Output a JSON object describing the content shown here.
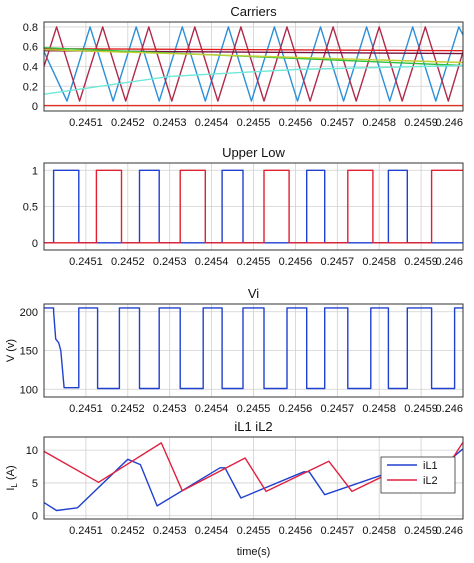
{
  "chart_data": [
    {
      "id": "carriers",
      "type": "line",
      "title": "Carriers",
      "ylabel": "",
      "xlim": [
        0.245,
        0.246
      ],
      "ylim": [
        -0.05,
        0.85
      ],
      "xticks": [
        "0.2451",
        "0.2452",
        "0.2453",
        "0.2454",
        "0.2455",
        "0.2456",
        "0.2457",
        "0.2458",
        "0.2459",
        "0.246"
      ],
      "yticks": [
        "0",
        "0.2",
        "0.4",
        "0.6",
        "0.8"
      ],
      "yticks_values": [
        0,
        0.2,
        0.4,
        0.6,
        0.8
      ],
      "grid": true,
      "series": [
        {
          "color": "#2a8fd8",
          "x": [
            0.245,
            0.245055,
            0.24511,
            0.245165,
            0.24522,
            0.245275,
            0.24533,
            0.245385,
            0.24544,
            0.245495,
            0.24555,
            0.245605,
            0.24566,
            0.245715,
            0.24577,
            0.245825,
            0.24588,
            0.245935,
            0.24599,
            0.246
          ],
          "y": [
            0.55,
            0.05,
            0.8,
            0.05,
            0.8,
            0.05,
            0.8,
            0.05,
            0.8,
            0.05,
            0.8,
            0.05,
            0.8,
            0.05,
            0.8,
            0.05,
            0.8,
            0.05,
            0.8,
            0.72
          ]
        },
        {
          "color": "#b0284a",
          "x": [
            0.245,
            0.24503,
            0.245085,
            0.24514,
            0.245195,
            0.24525,
            0.245305,
            0.24536,
            0.245415,
            0.24547,
            0.245525,
            0.24558,
            0.245635,
            0.24569,
            0.245745,
            0.2458,
            0.245855,
            0.24591,
            0.245965,
            0.246
          ],
          "y": [
            0.4,
            0.8,
            0.05,
            0.8,
            0.05,
            0.8,
            0.05,
            0.8,
            0.05,
            0.8,
            0.05,
            0.8,
            0.05,
            0.8,
            0.05,
            0.8,
            0.05,
            0.8,
            0.05,
            0.55
          ]
        },
        {
          "color": "#7a1040",
          "x": [
            0.245,
            0.246
          ],
          "y": [
            0.56,
            0.53
          ]
        },
        {
          "color": "#e02020",
          "x": [
            0.245,
            0.246
          ],
          "y": [
            0.58,
            0.56
          ]
        },
        {
          "color": "#30c040",
          "x": [
            0.245,
            0.246
          ],
          "y": [
            0.59,
            0.41
          ]
        },
        {
          "color": "#c0d030",
          "x": [
            0.245,
            0.246
          ],
          "y": [
            0.57,
            0.44
          ]
        },
        {
          "color": "#70e8d8",
          "x": [
            0.245,
            0.2451,
            0.2453,
            0.2456,
            0.246
          ],
          "y": [
            0.12,
            0.18,
            0.3,
            0.37,
            0.41
          ]
        },
        {
          "color": "#e03020",
          "x": [
            0.245,
            0.246
          ],
          "y": [
            0.005,
            0.005
          ]
        }
      ]
    },
    {
      "id": "upper-low",
      "type": "line",
      "title": "Upper Low",
      "ylabel": "",
      "xlim": [
        0.245,
        0.246
      ],
      "ylim": [
        -0.1,
        1.1
      ],
      "xticks": [
        "0.2451",
        "0.2452",
        "0.2453",
        "0.2454",
        "0.2455",
        "0.2456",
        "0.2457",
        "0.2458",
        "0.2459",
        "0.246"
      ],
      "yticks": [
        "0",
        "0.5",
        "1"
      ],
      "yticks_values": [
        0,
        0.5,
        1
      ],
      "grid": true,
      "series": [
        {
          "color": "#2040d0",
          "x": [
            0.245,
            0.245023,
            0.245023,
            0.245083,
            0.245083,
            0.245228,
            0.245228,
            0.245275,
            0.245275,
            0.245425,
            0.245425,
            0.245475,
            0.245475,
            0.245627,
            0.245627,
            0.24567,
            0.24567,
            0.245822,
            0.245822,
            0.245867,
            0.245867,
            0.246
          ],
          "y": [
            0,
            0,
            1,
            1,
            0,
            0,
            1,
            1,
            0,
            0,
            1,
            1,
            0,
            0,
            1,
            1,
            0,
            0,
            1,
            1,
            0,
            0
          ]
        },
        {
          "color": "#e02030",
          "x": [
            0.245,
            0.245125,
            0.245125,
            0.245185,
            0.245185,
            0.245325,
            0.245325,
            0.245385,
            0.245385,
            0.245525,
            0.245525,
            0.245585,
            0.245585,
            0.245725,
            0.245725,
            0.245785,
            0.245785,
            0.245925,
            0.245925,
            0.246
          ],
          "y": [
            0,
            0,
            1,
            1,
            0,
            0,
            1,
            1,
            0,
            0,
            1,
            1,
            0,
            0,
            1,
            1,
            0,
            0,
            1,
            1
          ]
        }
      ]
    },
    {
      "id": "vi",
      "type": "line",
      "title": "Vi",
      "ylabel": "V (v)",
      "xlim": [
        0.245,
        0.246
      ],
      "ylim": [
        90,
        210
      ],
      "xticks": [
        "0.2451",
        "0.2452",
        "0.2453",
        "0.2454",
        "0.2455",
        "0.2456",
        "0.2457",
        "0.2458",
        "0.2459",
        "0.246"
      ],
      "yticks": [
        "100",
        "150",
        "200"
      ],
      "yticks_values": [
        100,
        150,
        200
      ],
      "grid": true,
      "series": [
        {
          "color": "#2040d0",
          "x": [
            0.245,
            0.245023,
            0.245023,
            0.245028,
            0.245035,
            0.24504,
            0.245048,
            0.245083,
            0.245083,
            0.245128,
            0.245128,
            0.24518,
            0.24518,
            0.245228,
            0.245228,
            0.245275,
            0.245275,
            0.245325,
            0.245325,
            0.24538,
            0.24538,
            0.245425,
            0.245425,
            0.245475,
            0.245475,
            0.245525,
            0.245525,
            0.24558,
            0.24558,
            0.245627,
            0.245627,
            0.24567,
            0.24567,
            0.245725,
            0.245725,
            0.24578,
            0.24578,
            0.245822,
            0.245822,
            0.245867,
            0.245867,
            0.245925,
            0.245925,
            0.24598,
            0.24598,
            0.246
          ],
          "y": [
            205,
            205,
            200,
            165,
            160,
            150,
            102,
            102,
            205,
            205,
            101,
            101,
            205,
            205,
            101,
            101,
            205,
            205,
            101,
            101,
            205,
            205,
            101,
            101,
            205,
            205,
            101,
            101,
            205,
            205,
            101,
            101,
            205,
            205,
            101,
            101,
            205,
            205,
            101,
            101,
            205,
            205,
            101,
            101,
            205,
            205
          ]
        }
      ]
    },
    {
      "id": "il1-il2",
      "type": "line",
      "title": "iL1 iL2",
      "ylabel": "I_L (A)",
      "xlabel": "time(s)",
      "xlim": [
        0.245,
        0.246
      ],
      "ylim": [
        -0.5,
        12
      ],
      "xticks": [
        "0.2451",
        "0.2452",
        "0.2453",
        "0.2454",
        "0.2455",
        "0.2456",
        "0.2457",
        "0.2458",
        "0.2459",
        "0.246"
      ],
      "yticks": [
        "0",
        "5",
        "10"
      ],
      "yticks_values": [
        0,
        5,
        10
      ],
      "grid": true,
      "legend": "top-right",
      "series": [
        {
          "name": "iL1",
          "color": "#2040d0",
          "x": [
            0.245,
            0.24503,
            0.24508,
            0.2452,
            0.24523,
            0.24527,
            0.24542,
            0.245432,
            0.24547,
            0.24562,
            0.245633,
            0.24567,
            0.24582,
            0.245832,
            0.245875,
            0.246
          ],
          "y": [
            2,
            0.8,
            1.2,
            8.6,
            7.8,
            1.5,
            7.3,
            7.3,
            2.7,
            6.7,
            6.7,
            3.2,
            6.5,
            6.5,
            3.5,
            10.2
          ]
        },
        {
          "name": "iL2",
          "color": "#e02040",
          "x": [
            0.245,
            0.24513,
            0.24528,
            0.24533,
            0.24548,
            0.24553,
            0.24568,
            0.245735,
            0.24588,
            0.24593,
            0.246
          ],
          "y": [
            9.8,
            5.1,
            11.1,
            3.8,
            8.8,
            3.7,
            8.3,
            3.7,
            8.2,
            4.3,
            11.2
          ]
        }
      ]
    }
  ]
}
